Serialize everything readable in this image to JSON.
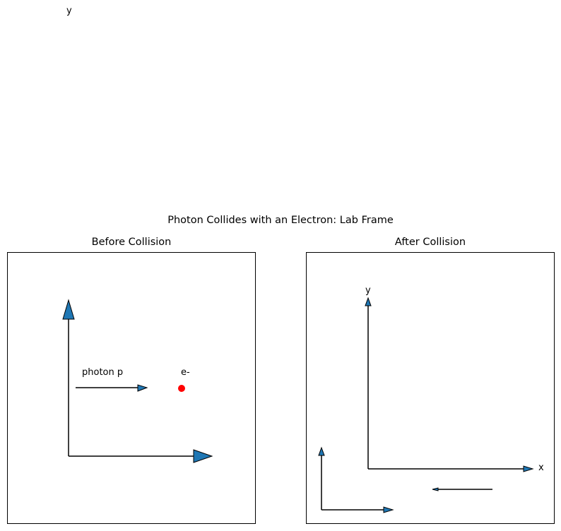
{
  "figure": {
    "stray_label": "y",
    "suptitle": "Photon Collides with an Electron: Lab Frame"
  },
  "panels": {
    "before": {
      "title": "Before Collision",
      "photon_label": "photon p",
      "electron_label": "e-"
    },
    "after": {
      "title": "After Collision",
      "y_label": "y",
      "x_label": "x"
    }
  },
  "colors": {
    "arrow_fill": "#1f77b4",
    "electron": "#ff0000",
    "stroke": "#000000"
  }
}
